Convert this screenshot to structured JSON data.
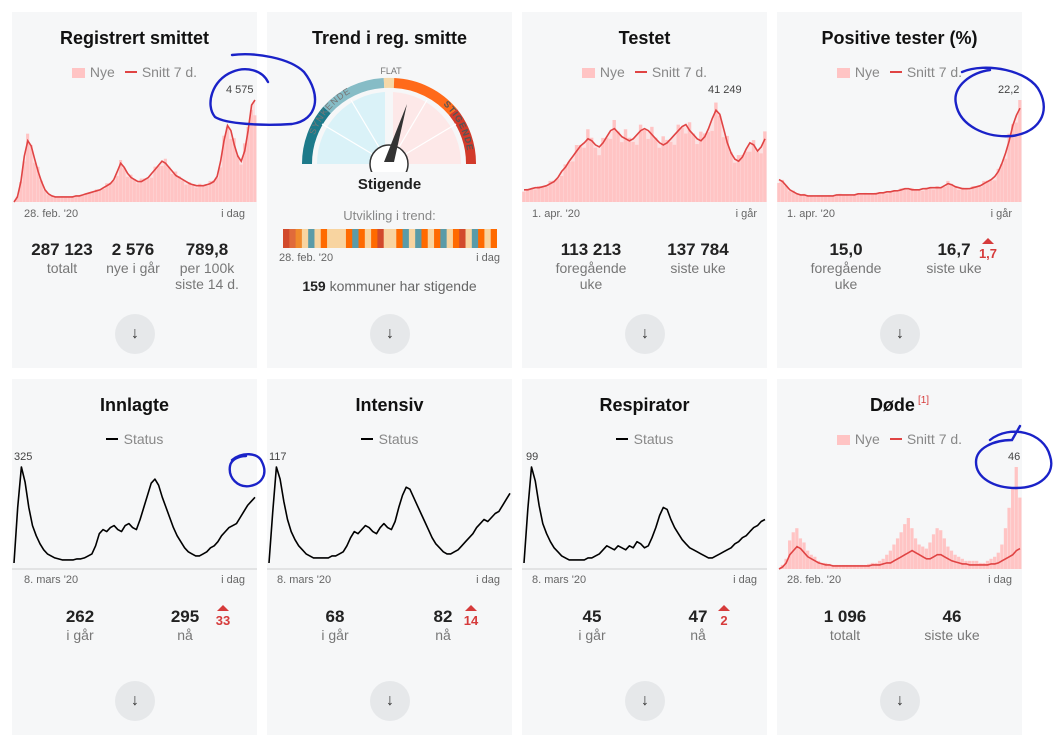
{
  "cards": {
    "reg": {
      "title": "Registrert smittet",
      "legend_new": "Nye",
      "legend_avg": "Snitt 7 d.",
      "peak": "4 575",
      "axis_start": "28. feb. '20",
      "axis_end": "i dag",
      "stats": [
        {
          "value": "287 123",
          "label": "totalt"
        },
        {
          "value": "2 576",
          "label": "nye i går"
        },
        {
          "value": "789,8",
          "label": "per 100k siste 14 d."
        }
      ],
      "chart_data": {
        "type": "area",
        "series": [
          {
            "name": "Nye"
          },
          {
            "name": "Snitt 7 d."
          }
        ],
        "x_range": [
          "28. feb. '20",
          "i dag"
        ],
        "values": [
          0,
          5,
          20,
          45,
          60,
          55,
          42,
          30,
          20,
          12,
          8,
          6,
          5,
          5,
          5,
          5,
          5,
          5,
          6,
          6,
          7,
          8,
          9,
          10,
          11,
          12,
          14,
          16,
          18,
          22,
          30,
          38,
          34,
          28,
          24,
          22,
          20,
          20,
          22,
          24,
          28,
          32,
          36,
          40,
          38,
          34,
          30,
          26,
          24,
          22,
          20,
          18,
          17,
          16,
          16,
          16,
          17,
          18,
          20,
          25,
          40,
          60,
          75,
          70,
          56,
          45,
          40,
          50,
          70,
          95,
          100
        ],
        "peak_label": 4575
      }
    },
    "trend": {
      "title": "Trend i reg. smitte",
      "gauge_flat": "FLAT",
      "gauge_down": "SYNKENDE",
      "gauge_up": "STIGENDE",
      "status": "Stigende",
      "subtitle": "Utvikling i trend:",
      "axis_start": "28. feb. '20",
      "axis_end": "i dag",
      "count": "159",
      "count_text": "kommuner har stigende",
      "bar_colors": [
        "#d24a2c",
        "#e06a3a",
        "#f08a2c",
        "#f8d4a0",
        "#5a9ba8",
        "#f8d4a0",
        "#ff6a00",
        "#f8d4a0",
        "#f8d4a0",
        "#f8d4a0",
        "#ff6a00",
        "#5a9ba8",
        "#ff6a00",
        "#f8d4a0",
        "#ff6a00",
        "#d24a2c",
        "#f8d4a0",
        "#f8d4a0",
        "#ff6a00",
        "#5a9ba8",
        "#f8d4a0",
        "#5a9ba8",
        "#ff6a00",
        "#f8d4a0",
        "#ff6a00",
        "#5a9ba8",
        "#f8d4a0",
        "#ff6a00",
        "#d24a2c",
        "#f8d4a0",
        "#5a9ba8",
        "#ff6a00",
        "#f8d4a0",
        "#ff6a00"
      ]
    },
    "testet": {
      "title": "Testet",
      "legend_new": "Nye",
      "legend_avg": "Snitt 7 d.",
      "peak": "41 249",
      "axis_start": "1. apr. '20",
      "axis_end": "i går",
      "stats": [
        {
          "value": "113 213",
          "label": "foregående uke"
        },
        {
          "value": "137 784",
          "label": "siste uke"
        }
      ],
      "chart_data": {
        "type": "area",
        "series": [
          {
            "name": "Nye"
          },
          {
            "name": "Snitt 7 d."
          }
        ],
        "x_range": [
          "1. apr. '20",
          "i går"
        ],
        "values": [
          12,
          12,
          13,
          14,
          14,
          15,
          16,
          18,
          20,
          24,
          30,
          34,
          40,
          45,
          50,
          55,
          58,
          62,
          60,
          56,
          54,
          58,
          64,
          70,
          72,
          68,
          64,
          62,
          60,
          62,
          66,
          70,
          72,
          70,
          66,
          62,
          58,
          56,
          58,
          62,
          66,
          70,
          74,
          76,
          70,
          66,
          62,
          60,
          64,
          72,
          82,
          90,
          86,
          72,
          58,
          48,
          42,
          40,
          44,
          52,
          58,
          56,
          50,
          54,
          62
        ],
        "peak_label": 41249
      }
    },
    "pos": {
      "title": "Positive tester (%)",
      "legend_new": "Nye",
      "legend_avg": "Snitt 7 d.",
      "peak": "22,2",
      "axis_start": "1. apr. '20",
      "axis_end": "i går",
      "stats": [
        {
          "value": "15,0",
          "label": "foregående uke"
        },
        {
          "value": "16,7",
          "label": "siste uke"
        }
      ],
      "delta": "1,7",
      "chart_data": {
        "type": "area",
        "series": [
          {
            "name": "Nye"
          },
          {
            "name": "Snitt 7 d."
          }
        ],
        "x_range": [
          "1. apr. '20",
          "i går"
        ],
        "values": [
          22,
          20,
          16,
          12,
          10,
          8,
          7,
          7,
          6,
          6,
          6,
          6,
          6,
          6,
          6,
          6,
          7,
          7,
          7,
          7,
          7,
          7,
          8,
          8,
          8,
          8,
          8,
          8,
          9,
          9,
          10,
          10,
          11,
          11,
          12,
          13,
          13,
          12,
          12,
          12,
          13,
          13,
          14,
          14,
          14,
          14,
          16,
          18,
          17,
          15,
          14,
          13,
          13,
          13,
          14,
          15,
          16,
          18,
          20,
          22,
          25,
          30,
          38,
          48,
          60,
          75,
          85,
          92
        ],
        "peak_label": 22.2
      }
    },
    "innlagte": {
      "title": "Innlagte",
      "legend_status": "Status",
      "peak": "325",
      "axis_start": "8. mars '20",
      "axis_end": "i dag",
      "stats": [
        {
          "value": "262",
          "label": "i går"
        },
        {
          "value": "295",
          "label": "nå"
        }
      ],
      "delta": "33",
      "chart_data": {
        "type": "line",
        "series": [
          {
            "name": "Status"
          }
        ],
        "x_range": [
          "8. mars '20",
          "i dag"
        ],
        "values": [
          5,
          60,
          100,
          85,
          60,
          42,
          32,
          24,
          18,
          14,
          12,
          10,
          9,
          8,
          8,
          8,
          8,
          9,
          9,
          10,
          12,
          14,
          22,
          34,
          38,
          36,
          40,
          42,
          38,
          36,
          42,
          44,
          40,
          38,
          48,
          60,
          72,
          84,
          88,
          82,
          70,
          60,
          50,
          40,
          32,
          26,
          20,
          16,
          14,
          12,
          12,
          14,
          16,
          20,
          22,
          26,
          32,
          36,
          40,
          42,
          44,
          50,
          56,
          62,
          66,
          70
        ]
      }
    },
    "intensiv": {
      "title": "Intensiv",
      "legend_status": "Status",
      "peak": "117",
      "axis_start": "8. mars '20",
      "axis_end": "i dag",
      "stats": [
        {
          "value": "68",
          "label": "i går"
        },
        {
          "value": "82",
          "label": "nå"
        }
      ],
      "delta": "14",
      "chart_data": {
        "type": "line",
        "series": [
          {
            "name": "Status"
          }
        ],
        "x_range": [
          "8. mars '20",
          "i dag"
        ],
        "values": [
          5,
          55,
          100,
          88,
          66,
          48,
          36,
          28,
          22,
          18,
          14,
          12,
          10,
          10,
          10,
          10,
          10,
          12,
          12,
          14,
          16,
          22,
          30,
          36,
          34,
          38,
          42,
          40,
          36,
          34,
          40,
          44,
          40,
          38,
          46,
          60,
          72,
          80,
          78,
          70,
          62,
          54,
          46,
          38,
          30,
          24,
          20,
          16,
          14,
          14,
          16,
          18,
          22,
          26,
          30,
          34,
          40,
          44,
          48,
          46,
          50,
          54,
          56,
          62,
          68,
          74
        ]
      }
    },
    "respirator": {
      "title": "Respirator",
      "legend_status": "Status",
      "peak": "99",
      "axis_start": "8. mars '20",
      "axis_end": "i dag",
      "stats": [
        {
          "value": "45",
          "label": "i går"
        },
        {
          "value": "47",
          "label": "nå"
        }
      ],
      "delta": "2",
      "chart_data": {
        "type": "line",
        "series": [
          {
            "name": "Status"
          }
        ],
        "x_range": [
          "8. mars '20",
          "i dag"
        ],
        "values": [
          5,
          58,
          100,
          86,
          62,
          44,
          34,
          26,
          20,
          16,
          12,
          10,
          8,
          8,
          8,
          8,
          8,
          10,
          10,
          12,
          14,
          18,
          22,
          20,
          18,
          22,
          20,
          18,
          22,
          20,
          26,
          24,
          20,
          22,
          30,
          40,
          52,
          60,
          58,
          48,
          40,
          34,
          28,
          24,
          20,
          18,
          16,
          14,
          12,
          10,
          10,
          12,
          14,
          16,
          18,
          20,
          24,
          26,
          30,
          32,
          36,
          40,
          42,
          46,
          48
        ]
      }
    },
    "dode": {
      "title": "Døde",
      "footnote": "[1]",
      "legend_new": "Nye",
      "legend_avg": "Snitt 7 d.",
      "peak": "46",
      "axis_start": "28. feb. '20",
      "axis_end": "i dag",
      "stats": [
        {
          "value": "1 096",
          "label": "totalt"
        },
        {
          "value": "46",
          "label": "siste uke"
        }
      ],
      "chart_data": {
        "type": "area",
        "series": [
          {
            "name": "Nye"
          },
          {
            "name": "Snitt 7 d."
          }
        ],
        "x_range": [
          "28. feb. '20",
          "i dag"
        ],
        "values": [
          0,
          2,
          6,
          14,
          18,
          22,
          20,
          16,
          12,
          10,
          8,
          6,
          5,
          4,
          4,
          3,
          3,
          3,
          3,
          3,
          3,
          3,
          3,
          3,
          3,
          3,
          4,
          4,
          4,
          5,
          6,
          6,
          8,
          10,
          12,
          14,
          16,
          18,
          16,
          14,
          12,
          10,
          10,
          12,
          14,
          14,
          12,
          10,
          8,
          7,
          6,
          5,
          5,
          4,
          4,
          4,
          4,
          4,
          4,
          5,
          5,
          6,
          8,
          10,
          12,
          14,
          18,
          20
        ],
        "bars": [
          0,
          4,
          10,
          28,
          36,
          40,
          30,
          26,
          18,
          14,
          12,
          8,
          6,
          6,
          5,
          4,
          4,
          4,
          4,
          4,
          4,
          4,
          4,
          4,
          4,
          5,
          6,
          6,
          8,
          10,
          14,
          18,
          24,
          30,
          36,
          44,
          50,
          40,
          30,
          24,
          22,
          20,
          26,
          34,
          40,
          38,
          30,
          22,
          18,
          14,
          12,
          10,
          8,
          8,
          8,
          8,
          6,
          6,
          8,
          10,
          12,
          16,
          24,
          40,
          60,
          80,
          100,
          70
        ],
        "peak_label": 46
      }
    }
  },
  "expand_icon": "↓"
}
